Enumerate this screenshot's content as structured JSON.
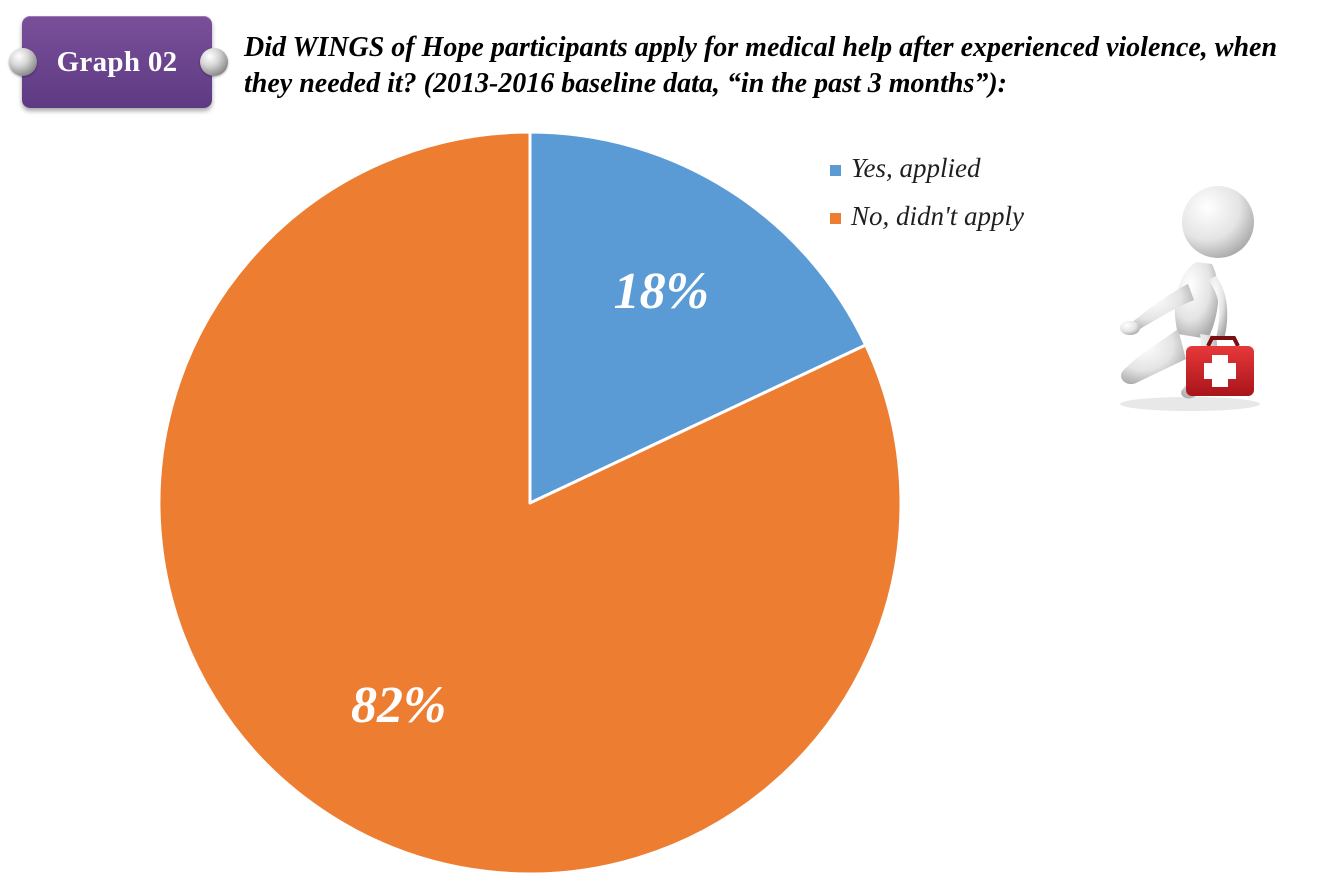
{
  "badge": {
    "label": "Graph 02",
    "color": "#6a4590"
  },
  "title": "Did WINGS of Hope participants apply for medical help after experienced violence, when they needed it? (2013-2016 baseline data, “in the past 3 months”):",
  "illustration": {
    "icon": "person-with-first-aid-kit-icon"
  },
  "chart_data": {
    "type": "pie",
    "start_angle_deg": 0,
    "direction": "clockwise",
    "legend_position": "top-right",
    "slices": [
      {
        "name": "Yes, applied",
        "value": 18,
        "label": "18%",
        "color": "#5b9bd5"
      },
      {
        "name": "No, didn't apply",
        "value": 82,
        "label": "82%",
        "color": "#ed7d31"
      }
    ]
  }
}
